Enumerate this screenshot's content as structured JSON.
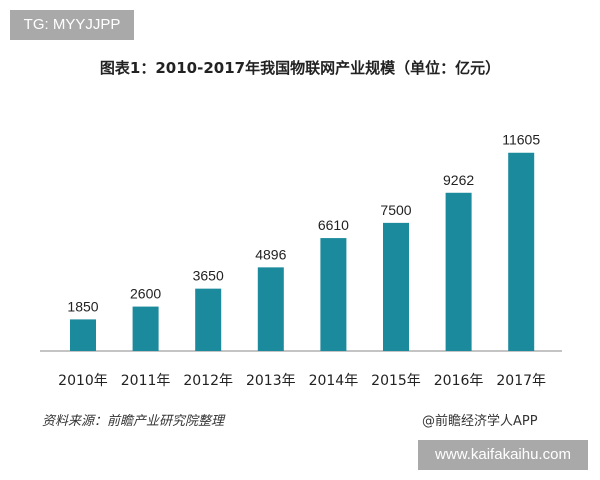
{
  "watermark_tag": "TG: MYYJJPP",
  "watermark_url": "www.kaifakaihu.com",
  "source": "资料来源：前瞻产业研究院整理",
  "credit": "@前瞻经济学人APP",
  "colors": {
    "bar": "#1b8a9c",
    "axis": "#888888"
  },
  "chart_data": {
    "type": "bar",
    "title": "图表1：2010-2017年我国物联网产业规模（单位：亿元）",
    "categories": [
      "2010年",
      "2011年",
      "2012年",
      "2013年",
      "2014年",
      "2015年",
      "2016年",
      "2017年"
    ],
    "values": [
      1850,
      2600,
      3650,
      4896,
      6610,
      7500,
      9262,
      11605
    ],
    "data_labels": [
      "1850",
      "2600",
      "3650",
      "4896",
      "6610",
      "7500",
      "9262",
      "11605"
    ],
    "ylim": [
      0,
      12000
    ],
    "grid": false,
    "legend": "none"
  }
}
